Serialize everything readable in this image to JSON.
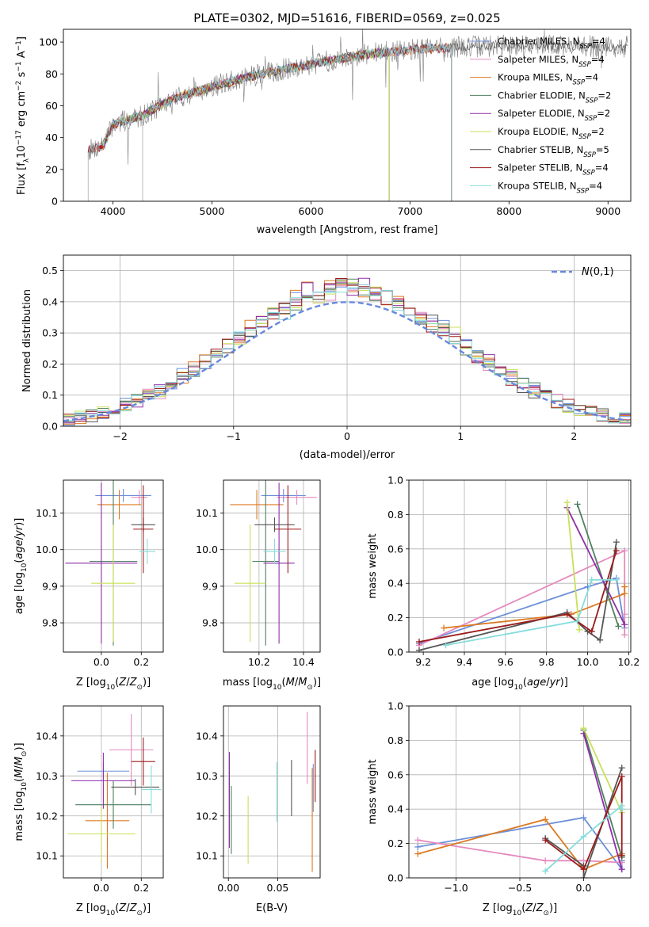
{
  "title": "PLATE=0302, MJD=51616, FIBERID=0569, z=0.025",
  "colors": {
    "Chabrier MILES": "#6c8fd9",
    "Salpeter MILES": "#e58ac0",
    "Kroupa MILES": "#dd7a22",
    "Chabrier ELODIE": "#4f7f5f",
    "Salpeter ELODIE": "#8e2fa8",
    "Kroupa ELODIE": "#c8e05a",
    "Chabrier STELIB": "#555555",
    "Salpeter STELIB": "#9b1a1a",
    "Kroupa STELIB": "#86dcdc",
    "gaussian": "#6688dd"
  },
  "chart_data": [
    {
      "id": "spectrum",
      "type": "line",
      "title": "PLATE=0302, MJD=51616, FIBERID=0569, z=0.025",
      "xlabel": "wavelength [Angstrom, rest frame]",
      "ylabel_parts": [
        "Flux [f",
        "λ",
        "10",
        "−17",
        " erg cm",
        "−2",
        " s",
        "−1",
        " A",
        "−1",
        "]"
      ],
      "xlim": [
        3500,
        9230
      ],
      "ylim": [
        0,
        108
      ],
      "xticks": [
        4000,
        5000,
        6000,
        7000,
        8000,
        9000
      ],
      "yticks": [
        0,
        20,
        40,
        60,
        80,
        100
      ],
      "legend_position": "top-right",
      "continuum": {
        "x": [
          3750,
          3900,
          4000,
          4300,
          4600,
          5000,
          5500,
          6000,
          6500,
          7000,
          7500,
          8000,
          8500,
          9000,
          9200
        ],
        "y": [
          32,
          35,
          48,
          54,
          64,
          72,
          80,
          86,
          92,
          95,
          97,
          98,
          98,
          97,
          97
        ]
      },
      "series": [
        {
          "name": "Chabrier MILES",
          "sub": "SSP",
          "n": "4",
          "x_range": [
            3750,
            7420
          ]
        },
        {
          "name": "Salpeter MILES",
          "sub": "SSP",
          "n": "4",
          "x_range": [
            3750,
            7420
          ]
        },
        {
          "name": "Kroupa MILES",
          "sub": "SSP",
          "n": "4",
          "x_range": [
            3750,
            7420
          ]
        },
        {
          "name": "Chabrier ELODIE",
          "sub": "SSP",
          "n": "2",
          "x_range": [
            3900,
            6790
          ]
        },
        {
          "name": "Salpeter ELODIE",
          "sub": "SSP",
          "n": "2",
          "x_range": [
            3900,
            6790
          ]
        },
        {
          "name": "Kroupa ELODIE",
          "sub": "SSP",
          "n": "2",
          "x_range": [
            3900,
            6790
          ]
        },
        {
          "name": "Chabrier STELIB",
          "sub": "SSP",
          "n": "5",
          "x_range": [
            3750,
            9200
          ]
        },
        {
          "name": "Salpeter STELIB",
          "sub": "SSP",
          "n": "4",
          "x_range": [
            3750,
            7420
          ]
        },
        {
          "name": "Kroupa STELIB",
          "sub": "SSP",
          "n": "4",
          "x_range": [
            3750,
            7420
          ]
        }
      ]
    },
    {
      "id": "residuals",
      "type": "histogram",
      "xlabel": "(data-model)/error",
      "ylabel": "Normed distribution",
      "xlim": [
        -2.5,
        2.5
      ],
      "ylim": [
        0,
        0.55
      ],
      "xticks": [
        -2,
        -1,
        0,
        1,
        2
      ],
      "xtick_labels": [
        "−2",
        "−1",
        "0",
        "1",
        "2"
      ],
      "yticks": [
        0.0,
        0.1,
        0.2,
        0.3,
        0.4,
        0.5
      ],
      "ytick_labels": [
        "0.0",
        "0.1",
        "0.2",
        "0.3",
        "0.4",
        "0.5"
      ],
      "grid": true,
      "bin_width": 0.1,
      "legend": {
        "label": "N(0,1)",
        "position": "top-right"
      },
      "series_names": [
        "Chabrier MILES",
        "Salpeter MILES",
        "Kroupa MILES",
        "Chabrier ELODIE",
        "Salpeter ELODIE",
        "Kroupa ELODIE",
        "Chabrier STELIB",
        "Salpeter STELIB",
        "Kroupa STELIB"
      ]
    },
    {
      "id": "age_vs_Z",
      "type": "errorbar",
      "xlabel": "Z [log10(Z/Z⊙)]",
      "ylabel": "age  [log10(age/yr)]",
      "xlim": [
        -0.19,
        0.31
      ],
      "ylim": [
        9.72,
        10.19
      ],
      "xticks": [
        0.0,
        0.2
      ],
      "xtick_labels": [
        "0.0",
        "0.2"
      ],
      "yticks": [
        9.8,
        9.9,
        10.0,
        10.1
      ],
      "ytick_labels": [
        "9.8",
        "9.9",
        "10.0",
        "10.1"
      ],
      "points": [
        {
          "series": "Chabrier MILES",
          "x": 0.11,
          "xerr": 0.14,
          "y": 10.148,
          "yerr": 0.018
        },
        {
          "series": "Salpeter MILES",
          "x": 0.19,
          "xerr": 0.04,
          "y": 10.143,
          "yerr": 0.02
        },
        {
          "series": "Kroupa MILES",
          "x": 0.09,
          "xerr": 0.11,
          "y": 10.123,
          "yerr": 0.04
        },
        {
          "series": "Chabrier ELODIE",
          "x": 0.06,
          "xerr": 0.12,
          "y": 9.968,
          "yerr": 0.23
        },
        {
          "series": "Salpeter ELODIE",
          "x": 0.0,
          "xerr": 0.18,
          "y": 9.963,
          "yerr": 0.22
        },
        {
          "series": "Kroupa ELODIE",
          "x": 0.06,
          "xerr": 0.11,
          "y": 9.908,
          "yerr": 0.16
        },
        {
          "series": "Chabrier STELIB",
          "x": 0.21,
          "xerr": 0.06,
          "y": 10.068,
          "yerr": 0.02
        },
        {
          "series": "Salpeter STELIB",
          "x": 0.21,
          "xerr": 0.05,
          "y": 10.056,
          "yerr": 0.12
        },
        {
          "series": "Kroupa STELIB",
          "x": 0.23,
          "xerr": 0.04,
          "y": 9.995,
          "yerr": 0.035
        }
      ]
    },
    {
      "id": "age_vs_mass",
      "type": "errorbar",
      "xlabel": "mass [log10(M/M⊙)]",
      "xlim": [
        10.04,
        10.475
      ],
      "ylim": [
        9.72,
        10.19
      ],
      "xticks": [
        10.2,
        10.4
      ],
      "xtick_labels": [
        "10.2",
        "10.4"
      ],
      "yticks": [
        9.8,
        9.9,
        10.0,
        10.1
      ],
      "ytick_labels": [
        "9.8",
        "9.9",
        "10.0",
        "10.1"
      ],
      "points": [
        {
          "series": "Chabrier MILES",
          "x": 10.31,
          "xerr": 0.1,
          "y": 10.148,
          "yerr": 0.018
        },
        {
          "series": "Salpeter MILES",
          "x": 10.37,
          "xerr": 0.09,
          "y": 10.143,
          "yerr": 0.02
        },
        {
          "series": "Kroupa MILES",
          "x": 10.19,
          "xerr": 0.12,
          "y": 10.123,
          "yerr": 0.04
        },
        {
          "series": "Chabrier ELODIE",
          "x": 10.23,
          "xerr": 0.06,
          "y": 9.968,
          "yerr": 0.23
        },
        {
          "series": "Salpeter ELODIE",
          "x": 10.29,
          "xerr": 0.07,
          "y": 9.963,
          "yerr": 0.22
        },
        {
          "series": "Kroupa ELODIE",
          "x": 10.16,
          "xerr": 0.07,
          "y": 9.908,
          "yerr": 0.16
        },
        {
          "series": "Chabrier STELIB",
          "x": 10.27,
          "xerr": 0.09,
          "y": 10.068,
          "yerr": 0.02
        },
        {
          "series": "Salpeter STELIB",
          "x": 10.33,
          "xerr": 0.06,
          "y": 10.056,
          "yerr": 0.12
        },
        {
          "series": "Kroupa STELIB",
          "x": 10.27,
          "xerr": 0.05,
          "y": 9.995,
          "yerr": 0.035
        }
      ]
    },
    {
      "id": "weight_vs_age",
      "type": "line",
      "xlabel": "age  [log10(age/yr)]",
      "ylabel": "mass weight",
      "xlim": [
        9.13,
        10.21
      ],
      "ylim": [
        0,
        1
      ],
      "xticks": [
        9.2,
        9.4,
        9.6,
        9.8,
        10.0,
        10.2
      ],
      "xtick_labels": [
        "9.2",
        "9.4",
        "9.6",
        "9.8",
        "10.0",
        "10.2"
      ],
      "yticks": [
        0.0,
        0.2,
        0.4,
        0.6,
        0.8,
        1.0
      ],
      "ytick_labels": [
        "0.0",
        "0.2",
        "0.4",
        "0.6",
        "0.8",
        "1.0"
      ],
      "grid": true,
      "series": [
        {
          "name": "Chabrier MILES",
          "x": [
            9.18,
            10.0,
            10.14,
            10.18
          ],
          "y": [
            0.05,
            0.38,
            0.43,
            0.14
          ]
        },
        {
          "name": "Salpeter MILES",
          "x": [
            9.18,
            10.18,
            10.18,
            10.18
          ],
          "y": [
            0.04,
            0.59,
            0.22,
            0.1
          ]
        },
        {
          "name": "Kroupa MILES",
          "x": [
            9.3,
            9.92,
            10.18,
            10.18
          ],
          "y": [
            0.14,
            0.22,
            0.34,
            0.38
          ]
        },
        {
          "name": "Chabrier ELODIE",
          "x": [
            9.95,
            10.15
          ],
          "y": [
            0.86,
            0.15
          ]
        },
        {
          "name": "Salpeter ELODIE",
          "x": [
            9.9,
            10.18
          ],
          "y": [
            0.84,
            0.16
          ]
        },
        {
          "name": "Kroupa ELODIE",
          "x": [
            9.9,
            9.96
          ],
          "y": [
            0.87,
            0.13
          ]
        },
        {
          "name": "Chabrier STELIB",
          "x": [
            9.18,
            9.9,
            10.0,
            10.06,
            10.14
          ],
          "y": [
            0.01,
            0.23,
            0.12,
            0.07,
            0.64
          ]
        },
        {
          "name": "Salpeter STELIB",
          "x": [
            9.18,
            9.9,
            10.02,
            10.14
          ],
          "y": [
            0.06,
            0.22,
            0.12,
            0.59
          ]
        },
        {
          "name": "Kroupa STELIB",
          "x": [
            9.31,
            9.95,
            10.02,
            10.14
          ],
          "y": [
            0.04,
            0.18,
            0.42,
            0.42
          ]
        }
      ]
    },
    {
      "id": "mass_vs_Z",
      "type": "errorbar",
      "xlabel": "Z [log10(Z/Z⊙)]",
      "ylabel": "mass [log10(M/M⊙)]",
      "xlim": [
        -0.19,
        0.31
      ],
      "ylim": [
        10.045,
        10.475
      ],
      "xticks": [
        0.0,
        0.2
      ],
      "xtick_labels": [
        "0.0",
        "0.2"
      ],
      "yticks": [
        10.1,
        10.2,
        10.3,
        10.4
      ],
      "ytick_labels": [
        "10.1",
        "10.2",
        "10.3",
        "10.4"
      ],
      "points": [
        {
          "series": "Chabrier MILES",
          "x": 0.01,
          "xerr": 0.13,
          "y": 10.312,
          "yerr": 0.02
        },
        {
          "series": "Salpeter MILES",
          "x": 0.15,
          "xerr": 0.11,
          "y": 10.365,
          "yerr": 0.09
        },
        {
          "series": "Kroupa MILES",
          "x": 0.03,
          "xerr": 0.11,
          "y": 10.188,
          "yerr": 0.12
        },
        {
          "series": "Chabrier ELODIE",
          "x": 0.06,
          "xerr": 0.19,
          "y": 10.228,
          "yerr": 0.06
        },
        {
          "series": "Salpeter ELODIE",
          "x": 0.01,
          "xerr": 0.16,
          "y": 10.288,
          "yerr": 0.07
        },
        {
          "series": "Kroupa ELODIE",
          "x": 0.0,
          "xerr": 0.17,
          "y": 10.155,
          "yerr": 0.07
        },
        {
          "series": "Chabrier STELIB",
          "x": 0.17,
          "xerr": 0.12,
          "y": 10.272,
          "yerr": 0.02
        },
        {
          "series": "Salpeter STELIB",
          "x": 0.21,
          "xerr": 0.06,
          "y": 10.336,
          "yerr": 0.06
        },
        {
          "series": "Kroupa STELIB",
          "x": 0.25,
          "xerr": 0.05,
          "y": 10.266,
          "yerr": 0.06
        }
      ]
    },
    {
      "id": "mass_vs_ebv",
      "type": "errorbar",
      "xlabel": "E(B-V)",
      "xlim": [
        -0.005,
        0.093
      ],
      "ylim": [
        10.045,
        10.475
      ],
      "xticks": [
        0.0,
        0.05
      ],
      "xtick_labels": [
        "0.00",
        "0.05"
      ],
      "yticks": [
        10.1,
        10.2,
        10.3,
        10.4
      ],
      "ytick_labels": [
        "10.1",
        "10.2",
        "10.3",
        "10.4"
      ],
      "points": [
        {
          "series": "Chabrier MILES",
          "x": 0.086,
          "y": 10.27,
          "yerr": 0.06
        },
        {
          "series": "Salpeter MILES",
          "x": 0.08,
          "y": 10.37,
          "yerr": 0.09
        },
        {
          "series": "Kroupa MILES",
          "x": 0.085,
          "y": 10.19,
          "yerr": 0.13
        },
        {
          "series": "Chabrier ELODIE",
          "x": 0.003,
          "y": 10.19,
          "yerr": 0.085
        },
        {
          "series": "Salpeter ELODIE",
          "x": 0.001,
          "y": 10.24,
          "yerr": 0.12
        },
        {
          "series": "Kroupa ELODIE",
          "x": 0.02,
          "y": 10.165,
          "yerr": 0.085
        },
        {
          "series": "Chabrier STELIB",
          "x": 0.064,
          "y": 10.27,
          "yerr": 0.07
        },
        {
          "series": "Salpeter STELIB",
          "x": 0.088,
          "y": 10.3,
          "yerr": 0.065
        },
        {
          "series": "Kroupa STELIB",
          "x": 0.049,
          "y": 10.26,
          "yerr": 0.075
        }
      ]
    },
    {
      "id": "weight_vs_Z",
      "type": "line",
      "xlabel": "Z [log10(Z/Z⊙)]",
      "ylabel": "mass weight",
      "xlim": [
        -1.37,
        0.37
      ],
      "ylim": [
        0,
        1
      ],
      "xticks": [
        -1.0,
        -0.5,
        0.0
      ],
      "xtick_labels": [
        "−1.0",
        "−0.5",
        "0.0"
      ],
      "yticks": [
        0.0,
        0.2,
        0.4,
        0.6,
        0.8,
        1.0
      ],
      "ytick_labels": [
        "0.0",
        "0.2",
        "0.4",
        "0.6",
        "0.8",
        "1.0"
      ],
      "grid": true,
      "series": [
        {
          "name": "Chabrier MILES",
          "x": [
            -1.3,
            0.0,
            0.3,
            0.3
          ],
          "y": [
            0.18,
            0.35,
            0.05,
            0.1
          ]
        },
        {
          "name": "Salpeter MILES",
          "x": [
            -1.3,
            -0.3,
            0.0,
            0.3
          ],
          "y": [
            0.22,
            0.1,
            0.1,
            0.09
          ]
        },
        {
          "name": "Kroupa MILES",
          "x": [
            -1.3,
            -0.3,
            0.0,
            0.3
          ],
          "y": [
            0.14,
            0.34,
            0.05,
            0.14
          ]
        },
        {
          "name": "Chabrier ELODIE",
          "x": [
            0.0,
            0.3
          ],
          "y": [
            0.86,
            0.12
          ]
        },
        {
          "name": "Salpeter ELODIE",
          "x": [
            0.0,
            0.3
          ],
          "y": [
            0.84,
            0.05
          ]
        },
        {
          "name": "Kroupa ELODIE",
          "x": [
            0.0,
            0.3
          ],
          "y": [
            0.87,
            0.38
          ]
        },
        {
          "name": "Chabrier STELIB",
          "x": [
            -0.3,
            0.0,
            0.0,
            0.3
          ],
          "y": [
            0.23,
            0.07,
            0.0,
            0.64
          ]
        },
        {
          "name": "Salpeter STELIB",
          "x": [
            -0.3,
            0.0,
            0.3,
            0.3
          ],
          "y": [
            0.22,
            0.05,
            0.59,
            0.13
          ]
        },
        {
          "name": "Kroupa STELIB",
          "x": [
            -0.3,
            0.0,
            0.3,
            0.3
          ],
          "y": [
            0.04,
            0.24,
            0.42,
            0.4
          ]
        }
      ]
    }
  ]
}
